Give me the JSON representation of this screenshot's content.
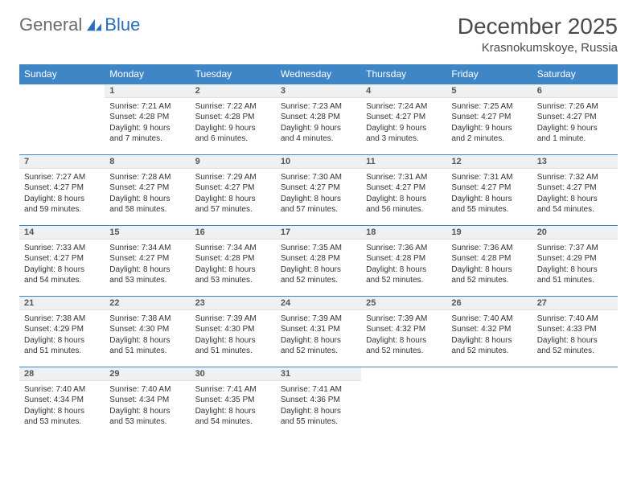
{
  "brand": {
    "general": "General",
    "blue": "Blue"
  },
  "header": {
    "title": "December 2025",
    "location": "Krasnokumskoye, Russia"
  },
  "colors": {
    "header_bg": "#3f86c7",
    "header_text": "#ffffff",
    "daynum_bg": "#eef0f1",
    "rule": "#3f86c7",
    "logo_gray": "#6b6b6b",
    "logo_blue": "#2a6db8"
  },
  "weekdays": [
    "Sunday",
    "Monday",
    "Tuesday",
    "Wednesday",
    "Thursday",
    "Friday",
    "Saturday"
  ],
  "weeks": [
    [
      null,
      {
        "n": "1",
        "sr": "Sunrise: 7:21 AM",
        "ss": "Sunset: 4:28 PM",
        "dl": "Daylight: 9 hours and 7 minutes."
      },
      {
        "n": "2",
        "sr": "Sunrise: 7:22 AM",
        "ss": "Sunset: 4:28 PM",
        "dl": "Daylight: 9 hours and 6 minutes."
      },
      {
        "n": "3",
        "sr": "Sunrise: 7:23 AM",
        "ss": "Sunset: 4:28 PM",
        "dl": "Daylight: 9 hours and 4 minutes."
      },
      {
        "n": "4",
        "sr": "Sunrise: 7:24 AM",
        "ss": "Sunset: 4:27 PM",
        "dl": "Daylight: 9 hours and 3 minutes."
      },
      {
        "n": "5",
        "sr": "Sunrise: 7:25 AM",
        "ss": "Sunset: 4:27 PM",
        "dl": "Daylight: 9 hours and 2 minutes."
      },
      {
        "n": "6",
        "sr": "Sunrise: 7:26 AM",
        "ss": "Sunset: 4:27 PM",
        "dl": "Daylight: 9 hours and 1 minute."
      }
    ],
    [
      {
        "n": "7",
        "sr": "Sunrise: 7:27 AM",
        "ss": "Sunset: 4:27 PM",
        "dl": "Daylight: 8 hours and 59 minutes."
      },
      {
        "n": "8",
        "sr": "Sunrise: 7:28 AM",
        "ss": "Sunset: 4:27 PM",
        "dl": "Daylight: 8 hours and 58 minutes."
      },
      {
        "n": "9",
        "sr": "Sunrise: 7:29 AM",
        "ss": "Sunset: 4:27 PM",
        "dl": "Daylight: 8 hours and 57 minutes."
      },
      {
        "n": "10",
        "sr": "Sunrise: 7:30 AM",
        "ss": "Sunset: 4:27 PM",
        "dl": "Daylight: 8 hours and 57 minutes."
      },
      {
        "n": "11",
        "sr": "Sunrise: 7:31 AM",
        "ss": "Sunset: 4:27 PM",
        "dl": "Daylight: 8 hours and 56 minutes."
      },
      {
        "n": "12",
        "sr": "Sunrise: 7:31 AM",
        "ss": "Sunset: 4:27 PM",
        "dl": "Daylight: 8 hours and 55 minutes."
      },
      {
        "n": "13",
        "sr": "Sunrise: 7:32 AM",
        "ss": "Sunset: 4:27 PM",
        "dl": "Daylight: 8 hours and 54 minutes."
      }
    ],
    [
      {
        "n": "14",
        "sr": "Sunrise: 7:33 AM",
        "ss": "Sunset: 4:27 PM",
        "dl": "Daylight: 8 hours and 54 minutes."
      },
      {
        "n": "15",
        "sr": "Sunrise: 7:34 AM",
        "ss": "Sunset: 4:27 PM",
        "dl": "Daylight: 8 hours and 53 minutes."
      },
      {
        "n": "16",
        "sr": "Sunrise: 7:34 AM",
        "ss": "Sunset: 4:28 PM",
        "dl": "Daylight: 8 hours and 53 minutes."
      },
      {
        "n": "17",
        "sr": "Sunrise: 7:35 AM",
        "ss": "Sunset: 4:28 PM",
        "dl": "Daylight: 8 hours and 52 minutes."
      },
      {
        "n": "18",
        "sr": "Sunrise: 7:36 AM",
        "ss": "Sunset: 4:28 PM",
        "dl": "Daylight: 8 hours and 52 minutes."
      },
      {
        "n": "19",
        "sr": "Sunrise: 7:36 AM",
        "ss": "Sunset: 4:28 PM",
        "dl": "Daylight: 8 hours and 52 minutes."
      },
      {
        "n": "20",
        "sr": "Sunrise: 7:37 AM",
        "ss": "Sunset: 4:29 PM",
        "dl": "Daylight: 8 hours and 51 minutes."
      }
    ],
    [
      {
        "n": "21",
        "sr": "Sunrise: 7:38 AM",
        "ss": "Sunset: 4:29 PM",
        "dl": "Daylight: 8 hours and 51 minutes."
      },
      {
        "n": "22",
        "sr": "Sunrise: 7:38 AM",
        "ss": "Sunset: 4:30 PM",
        "dl": "Daylight: 8 hours and 51 minutes."
      },
      {
        "n": "23",
        "sr": "Sunrise: 7:39 AM",
        "ss": "Sunset: 4:30 PM",
        "dl": "Daylight: 8 hours and 51 minutes."
      },
      {
        "n": "24",
        "sr": "Sunrise: 7:39 AM",
        "ss": "Sunset: 4:31 PM",
        "dl": "Daylight: 8 hours and 52 minutes."
      },
      {
        "n": "25",
        "sr": "Sunrise: 7:39 AM",
        "ss": "Sunset: 4:32 PM",
        "dl": "Daylight: 8 hours and 52 minutes."
      },
      {
        "n": "26",
        "sr": "Sunrise: 7:40 AM",
        "ss": "Sunset: 4:32 PM",
        "dl": "Daylight: 8 hours and 52 minutes."
      },
      {
        "n": "27",
        "sr": "Sunrise: 7:40 AM",
        "ss": "Sunset: 4:33 PM",
        "dl": "Daylight: 8 hours and 52 minutes."
      }
    ],
    [
      {
        "n": "28",
        "sr": "Sunrise: 7:40 AM",
        "ss": "Sunset: 4:34 PM",
        "dl": "Daylight: 8 hours and 53 minutes."
      },
      {
        "n": "29",
        "sr": "Sunrise: 7:40 AM",
        "ss": "Sunset: 4:34 PM",
        "dl": "Daylight: 8 hours and 53 minutes."
      },
      {
        "n": "30",
        "sr": "Sunrise: 7:41 AM",
        "ss": "Sunset: 4:35 PM",
        "dl": "Daylight: 8 hours and 54 minutes."
      },
      {
        "n": "31",
        "sr": "Sunrise: 7:41 AM",
        "ss": "Sunset: 4:36 PM",
        "dl": "Daylight: 8 hours and 55 minutes."
      },
      null,
      null,
      null
    ]
  ]
}
